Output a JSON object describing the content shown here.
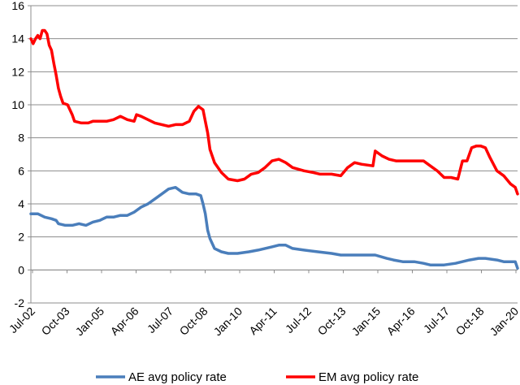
{
  "chart_data": {
    "type": "line",
    "title": "",
    "xlabel": "",
    "ylabel": "",
    "ylim": [
      -2,
      16
    ],
    "yticks": [
      -2,
      0,
      2,
      4,
      6,
      8,
      10,
      12,
      14,
      16
    ],
    "xticks": [
      "Jul-02",
      "Oct-03",
      "Jan-05",
      "Apr-06",
      "Jul-07",
      "Oct-08",
      "Jan-10",
      "Apr-11",
      "Jul-12",
      "Oct-13",
      "Jan-15",
      "Apr-16",
      "Jul-17",
      "Oct-18",
      "Jan-20"
    ],
    "grid": "horizontal",
    "legend": "bottom",
    "series": [
      {
        "name": "AE avg policy rate",
        "color": "#4a7ebb",
        "points": [
          [
            "2002-07",
            3.4
          ],
          [
            "2002-10",
            3.4
          ],
          [
            "2003-01",
            3.2
          ],
          [
            "2003-04",
            3.1
          ],
          [
            "2003-06",
            3.0
          ],
          [
            "2003-07",
            2.8
          ],
          [
            "2003-10",
            2.7
          ],
          [
            "2004-01",
            2.7
          ],
          [
            "2004-04",
            2.8
          ],
          [
            "2004-07",
            2.7
          ],
          [
            "2004-10",
            2.9
          ],
          [
            "2005-01",
            3.0
          ],
          [
            "2005-04",
            3.2
          ],
          [
            "2005-07",
            3.2
          ],
          [
            "2005-10",
            3.3
          ],
          [
            "2006-01",
            3.3
          ],
          [
            "2006-04",
            3.5
          ],
          [
            "2006-07",
            3.8
          ],
          [
            "2006-10",
            4.0
          ],
          [
            "2007-01",
            4.3
          ],
          [
            "2007-04",
            4.6
          ],
          [
            "2007-07",
            4.9
          ],
          [
            "2007-10",
            5.0
          ],
          [
            "2008-01",
            4.7
          ],
          [
            "2008-04",
            4.6
          ],
          [
            "2008-07",
            4.6
          ],
          [
            "2008-09",
            4.5
          ],
          [
            "2008-10",
            4.0
          ],
          [
            "2008-11",
            3.4
          ],
          [
            "2008-12",
            2.4
          ],
          [
            "2009-01",
            1.9
          ],
          [
            "2009-03",
            1.3
          ],
          [
            "2009-06",
            1.1
          ],
          [
            "2009-09",
            1.0
          ],
          [
            "2010-01",
            1.0
          ],
          [
            "2010-06",
            1.1
          ],
          [
            "2010-10",
            1.2
          ],
          [
            "2011-01",
            1.3
          ],
          [
            "2011-04",
            1.4
          ],
          [
            "2011-07",
            1.5
          ],
          [
            "2011-10",
            1.5
          ],
          [
            "2012-01",
            1.3
          ],
          [
            "2012-06",
            1.2
          ],
          [
            "2012-12",
            1.1
          ],
          [
            "2013-06",
            1.0
          ],
          [
            "2013-10",
            0.9
          ],
          [
            "2014-06",
            0.9
          ],
          [
            "2015-01",
            0.9
          ],
          [
            "2015-06",
            0.7
          ],
          [
            "2015-09",
            0.6
          ],
          [
            "2016-01",
            0.5
          ],
          [
            "2016-06",
            0.5
          ],
          [
            "2016-10",
            0.4
          ],
          [
            "2017-01",
            0.3
          ],
          [
            "2017-07",
            0.3
          ],
          [
            "2017-12",
            0.4
          ],
          [
            "2018-06",
            0.6
          ],
          [
            "2018-10",
            0.7
          ],
          [
            "2019-01",
            0.7
          ],
          [
            "2019-06",
            0.6
          ],
          [
            "2019-09",
            0.5
          ],
          [
            "2019-12",
            0.5
          ],
          [
            "2020-02",
            0.5
          ],
          [
            "2020-03",
            0.1
          ]
        ]
      },
      {
        "name": "EM avg policy rate",
        "color": "#ff0000",
        "points": [
          [
            "2002-07",
            14.0
          ],
          [
            "2002-08",
            13.7
          ],
          [
            "2002-09",
            14.0
          ],
          [
            "2002-10",
            14.2
          ],
          [
            "2002-11",
            14.0
          ],
          [
            "2002-12",
            14.5
          ],
          [
            "2003-01",
            14.5
          ],
          [
            "2003-02",
            14.3
          ],
          [
            "2003-03",
            13.6
          ],
          [
            "2003-04",
            13.3
          ],
          [
            "2003-05",
            12.5
          ],
          [
            "2003-06",
            11.8
          ],
          [
            "2003-07",
            11.0
          ],
          [
            "2003-08",
            10.5
          ],
          [
            "2003-09",
            10.1
          ],
          [
            "2003-11",
            10.0
          ],
          [
            "2004-01",
            9.4
          ],
          [
            "2004-02",
            9.0
          ],
          [
            "2004-05",
            8.9
          ],
          [
            "2004-08",
            8.9
          ],
          [
            "2004-10",
            9.0
          ],
          [
            "2005-01",
            9.0
          ],
          [
            "2005-04",
            9.0
          ],
          [
            "2005-07",
            9.1
          ],
          [
            "2005-10",
            9.3
          ],
          [
            "2006-01",
            9.1
          ],
          [
            "2006-04",
            9.0
          ],
          [
            "2006-05",
            9.4
          ],
          [
            "2006-07",
            9.3
          ],
          [
            "2006-10",
            9.1
          ],
          [
            "2007-01",
            8.9
          ],
          [
            "2007-04",
            8.8
          ],
          [
            "2007-07",
            8.7
          ],
          [
            "2007-10",
            8.8
          ],
          [
            "2008-01",
            8.8
          ],
          [
            "2008-04",
            9.0
          ],
          [
            "2008-06",
            9.6
          ],
          [
            "2008-08",
            9.9
          ],
          [
            "2008-10",
            9.7
          ],
          [
            "2008-11",
            9.0
          ],
          [
            "2008-12",
            8.3
          ],
          [
            "2009-01",
            7.3
          ],
          [
            "2009-03",
            6.5
          ],
          [
            "2009-06",
            5.9
          ],
          [
            "2009-09",
            5.5
          ],
          [
            "2010-01",
            5.4
          ],
          [
            "2010-04",
            5.5
          ],
          [
            "2010-07",
            5.8
          ],
          [
            "2010-10",
            5.9
          ],
          [
            "2011-01",
            6.2
          ],
          [
            "2011-04",
            6.6
          ],
          [
            "2011-07",
            6.7
          ],
          [
            "2011-10",
            6.5
          ],
          [
            "2012-01",
            6.2
          ],
          [
            "2012-06",
            6.0
          ],
          [
            "2012-10",
            5.9
          ],
          [
            "2013-01",
            5.8
          ],
          [
            "2013-06",
            5.8
          ],
          [
            "2013-10",
            5.7
          ],
          [
            "2014-01",
            6.2
          ],
          [
            "2014-04",
            6.5
          ],
          [
            "2014-07",
            6.4
          ],
          [
            "2014-12",
            6.3
          ],
          [
            "2015-01",
            7.2
          ],
          [
            "2015-04",
            6.9
          ],
          [
            "2015-07",
            6.7
          ],
          [
            "2015-10",
            6.6
          ],
          [
            "2016-01",
            6.6
          ],
          [
            "2016-06",
            6.6
          ],
          [
            "2016-10",
            6.6
          ],
          [
            "2017-01",
            6.3
          ],
          [
            "2017-04",
            6.0
          ],
          [
            "2017-07",
            5.6
          ],
          [
            "2017-10",
            5.6
          ],
          [
            "2018-01",
            5.5
          ],
          [
            "2018-03",
            6.6
          ],
          [
            "2018-05",
            6.6
          ],
          [
            "2018-07",
            7.4
          ],
          [
            "2018-09",
            7.5
          ],
          [
            "2018-11",
            7.5
          ],
          [
            "2019-01",
            7.4
          ],
          [
            "2019-03",
            6.8
          ],
          [
            "2019-06",
            6.0
          ],
          [
            "2019-09",
            5.7
          ],
          [
            "2019-12",
            5.2
          ],
          [
            "2020-02",
            5.0
          ],
          [
            "2020-03",
            4.6
          ]
        ]
      }
    ]
  }
}
